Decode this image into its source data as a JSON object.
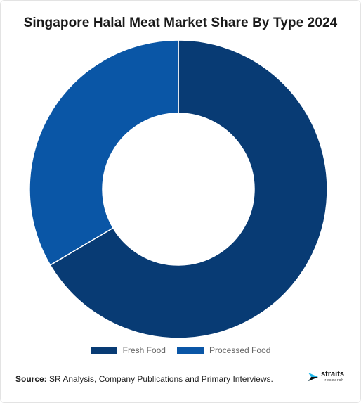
{
  "chart_data": {
    "type": "pie",
    "variant": "donut",
    "title": "Singapore Halal Meat Market Share By Type 2024",
    "slices": [
      {
        "label": "Fresh Food",
        "value": 66.5,
        "color": "#083b74"
      },
      {
        "label": "Processed Food",
        "value": 33.5,
        "color": "#0a56a6"
      }
    ],
    "legend_position": "bottom"
  },
  "source": {
    "label": "Source:",
    "text": " SR Analysis, Company Publications and Primary Interviews."
  },
  "logo": {
    "name": "straits",
    "tagline": "research",
    "color": "#1fb6e8"
  }
}
